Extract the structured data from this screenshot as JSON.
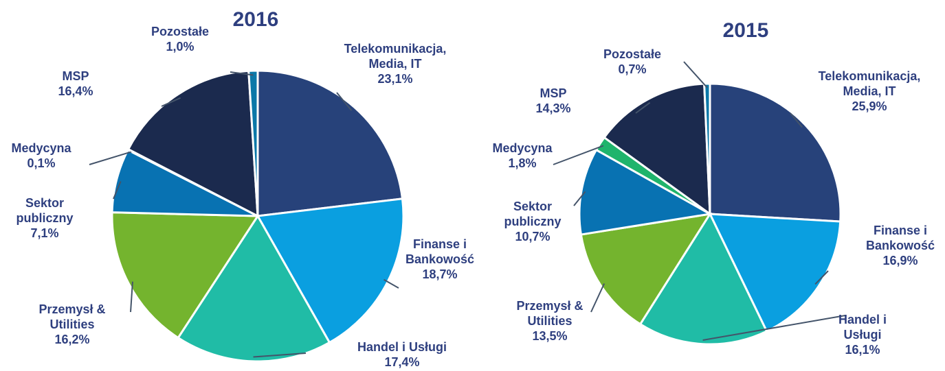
{
  "chart_data": [
    {
      "type": "pie",
      "title": "2016",
      "categories": [
        "Telekomunikacja, Media, IT",
        "Finanse i Bankowość",
        "Handel i Usługi",
        "Przemysł & Utilities",
        "Sektor publiczny",
        "Medycyna",
        "MSP",
        "Pozostałe"
      ],
      "values": [
        23.1,
        18.7,
        17.4,
        16.2,
        7.1,
        0.1,
        16.4,
        1.0
      ],
      "value_labels": [
        "23,1%",
        "18,7%",
        "17,4%",
        "16,2%",
        "7,1%",
        "0,1%",
        "16,4%",
        "1,0%"
      ],
      "colors": [
        "#27427a",
        "#0a9fe0",
        "#20bca6",
        "#74b42e",
        "#0872b2",
        "#1fb46c",
        "#1b2a4e",
        "#0b78a8"
      ]
    },
    {
      "type": "pie",
      "title": "2015",
      "categories": [
        "Telekomunikacja, Media, IT",
        "Finanse i Bankowość",
        "Handel i Usługi",
        "Przemysł & Utilities",
        "Sektor publiczny",
        "Medycyna",
        "MSP",
        "Pozostałe"
      ],
      "values": [
        25.9,
        16.9,
        16.1,
        13.5,
        10.7,
        1.8,
        14.3,
        0.7
      ],
      "value_labels": [
        "25,9%",
        "16,9%",
        "16,1%",
        "13,5%",
        "10,7%",
        "1,8%",
        "14,3%",
        "0,7%"
      ],
      "colors": [
        "#27427a",
        "#0a9fe0",
        "#20bca6",
        "#74b42e",
        "#0872b2",
        "#1fb46c",
        "#1b2a4e",
        "#0b78a8"
      ]
    }
  ]
}
